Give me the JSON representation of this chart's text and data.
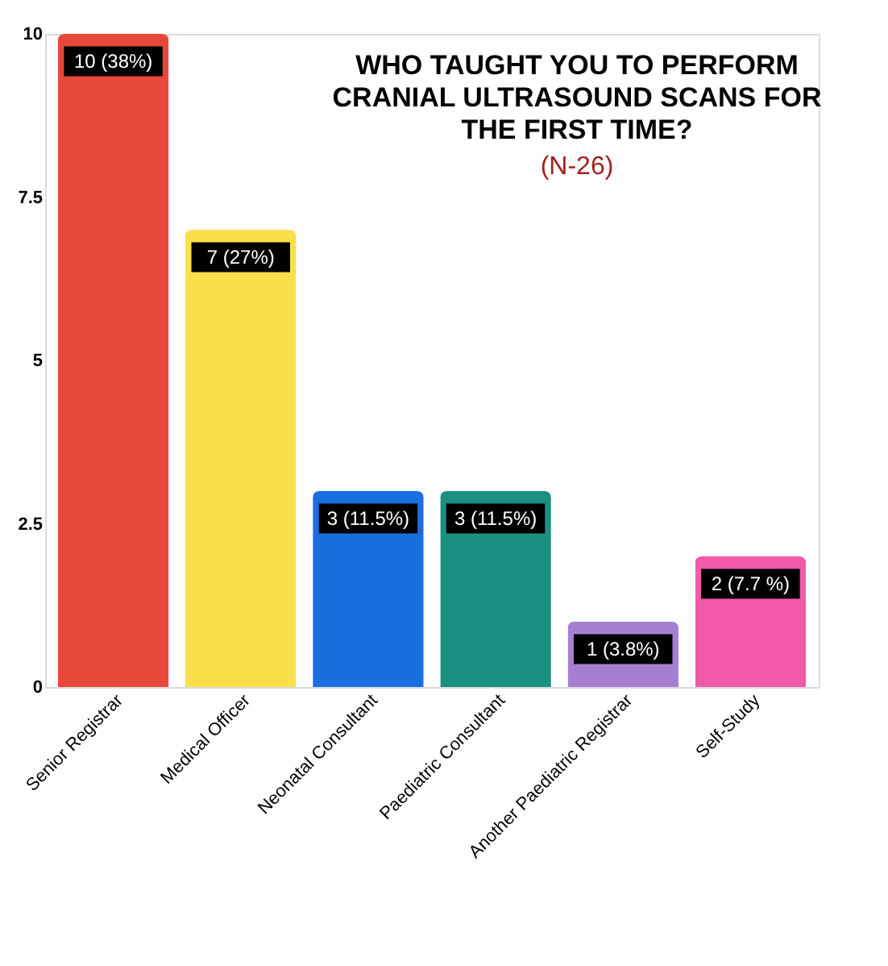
{
  "chart_data": {
    "type": "bar",
    "title": "WHO TAUGHT YOU TO PERFORM CRANIAL ULTRASOUND SCANS FOR THE FIRST TIME?",
    "subtitle": "(N-26)",
    "categories": [
      "Senior Registrar",
      "Medical Officer",
      "Neonatal Consultant",
      "Paediatric Consultant",
      "Another Paediatric Registrar",
      "Self-Study"
    ],
    "values": [
      10,
      7,
      3,
      3,
      1,
      2
    ],
    "colors": [
      "#e8483a",
      "#f9e04b",
      "#1a6fe0",
      "#1a9080",
      "#a77fd0",
      "#f05aa8"
    ],
    "value_labels": [
      "10 (38%)",
      "7 (27%)",
      "3 (11.5%)",
      "3 (11.5%)",
      "1 (3.8%)",
      "2 (7.7 %)"
    ],
    "ylim": [
      0,
      10
    ],
    "yticks": [
      0,
      2.5,
      5,
      7.5,
      10
    ],
    "grid": false
  }
}
